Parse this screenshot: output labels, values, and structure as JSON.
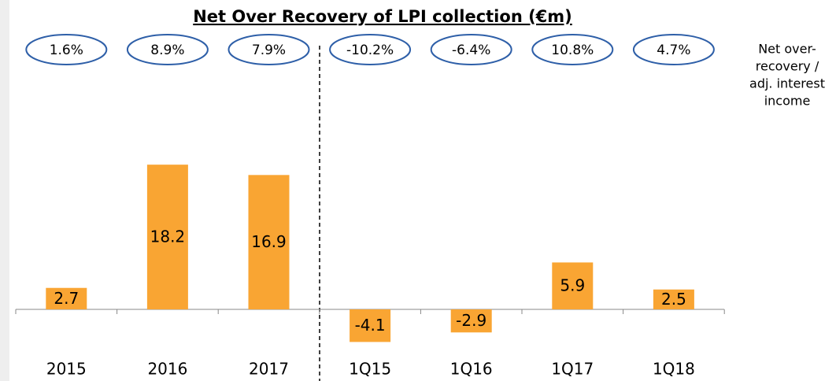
{
  "chart_data": {
    "type": "bar",
    "title": "Net Over Recovery of LPI collection (€m)",
    "categories": [
      "2015",
      "2016",
      "2017",
      "1Q15",
      "1Q16",
      "1Q17",
      "1Q18"
    ],
    "values": [
      2.7,
      18.2,
      16.9,
      -4.1,
      -2.9,
      5.9,
      2.5
    ],
    "color": "#f9a533",
    "annotations": [
      "1.6%",
      "8.9%",
      "7.9%",
      "-10.2%",
      "-6.4%",
      "10.8%",
      "4.7%"
    ],
    "annotation_title": [
      "Net over-",
      "recovery /",
      "adj. interest",
      "income"
    ]
  }
}
